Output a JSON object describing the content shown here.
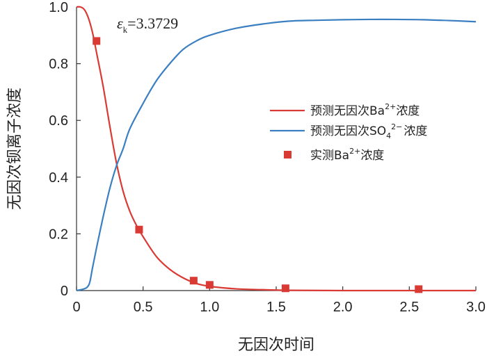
{
  "chart_data": {
    "type": "line",
    "xlabel": "无因次时间",
    "ylabel": "无因次钡离子浓度",
    "xlim": [
      0,
      3.0
    ],
    "ylim": [
      0,
      1.0
    ],
    "x_ticks": [
      "0",
      "0.5",
      "1.0",
      "1.5",
      "2.0",
      "2.5",
      "3.0"
    ],
    "y_ticks": [
      "0",
      "0.2",
      "0.4",
      "0.6",
      "0.8",
      "1.0"
    ],
    "annotation": {
      "symbol": "ε",
      "subscript": "k",
      "value": "=3.3729"
    },
    "legend_position": "right",
    "series": [
      {
        "name": "预测无因次Ba²⁺浓度",
        "legend": {
          "main": "预测无因次Ba",
          "sup": "2+",
          "tail": "浓度"
        },
        "kind": "line",
        "color": "#d93a34",
        "x": [
          0,
          0.03,
          0.06,
          0.09,
          0.12,
          0.15,
          0.2,
          0.25,
          0.3,
          0.35,
          0.4,
          0.45,
          0.5,
          0.6,
          0.7,
          0.8,
          0.9,
          1.0,
          1.2,
          1.4,
          1.6,
          2.0,
          2.5,
          3.0
        ],
        "y": [
          1.0,
          1.0,
          0.99,
          0.96,
          0.91,
          0.84,
          0.72,
          0.58,
          0.45,
          0.35,
          0.28,
          0.23,
          0.19,
          0.12,
          0.075,
          0.045,
          0.025,
          0.015,
          0.006,
          0.003,
          0.001,
          0,
          0,
          0
        ]
      },
      {
        "name": "预测无因次SO₄²⁻浓度",
        "legend": {
          "main": "预测无因次SO",
          "sub": "4",
          "sup": "2−",
          "tail": "浓度"
        },
        "kind": "line",
        "color": "#3a7fc1",
        "x": [
          0,
          0.05,
          0.08,
          0.1,
          0.12,
          0.15,
          0.2,
          0.25,
          0.3,
          0.35,
          0.4,
          0.5,
          0.6,
          0.7,
          0.8,
          0.9,
          1.0,
          1.2,
          1.4,
          1.6,
          1.8,
          2.0,
          2.2,
          2.4,
          2.6,
          2.8,
          3.0
        ],
        "y": [
          0,
          0.005,
          0.012,
          0.03,
          0.08,
          0.15,
          0.26,
          0.36,
          0.44,
          0.5,
          0.57,
          0.66,
          0.74,
          0.8,
          0.85,
          0.88,
          0.9,
          0.925,
          0.94,
          0.95,
          0.953,
          0.955,
          0.956,
          0.956,
          0.955,
          0.952,
          0.948
        ]
      },
      {
        "name": "实测Ba²⁺浓度",
        "legend": {
          "main": "实测Ba",
          "sup": "2+",
          "tail": "浓度"
        },
        "kind": "scatter",
        "color": "#d93a34",
        "x": [
          0.15,
          0.47,
          0.88,
          1.0,
          1.57,
          2.57
        ],
        "y": [
          0.88,
          0.215,
          0.035,
          0.02,
          0.008,
          0.005
        ]
      }
    ]
  }
}
